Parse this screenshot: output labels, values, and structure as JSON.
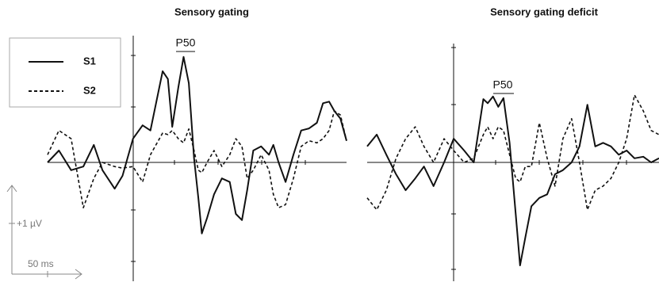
{
  "chart_data": [
    {
      "type": "line",
      "title": "Sensory gating",
      "annotations": [
        "P50"
      ],
      "x": [
        -98,
        -85,
        -71,
        -57,
        -45,
        -35,
        -21,
        -12,
        0,
        11,
        20,
        34,
        40,
        45,
        52,
        58,
        64,
        70,
        75,
        79,
        85,
        93,
        102,
        111,
        118,
        125,
        131,
        138,
        147,
        156,
        161,
        167,
        175,
        184,
        193,
        202,
        211,
        218,
        225,
        231,
        238,
        245
      ],
      "xlim": [
        -98,
        245
      ],
      "ylim": [
        -2.4,
        2.4
      ],
      "series": [
        {
          "name": "S1",
          "color": "#111111",
          "linestyle": "solid",
          "values": [
            0,
            0.23,
            -0.15,
            -0.08,
            0.34,
            -0.15,
            -0.51,
            -0.26,
            0.46,
            0.72,
            0.62,
            1.77,
            1.62,
            0.69,
            1.46,
            2.05,
            1.54,
            0.08,
            -0.69,
            -1.38,
            -1.08,
            -0.62,
            -0.31,
            -0.38,
            -1.0,
            -1.12,
            -0.54,
            0.23,
            0.31,
            0.15,
            0.34,
            0,
            -0.38,
            0.15,
            0.62,
            0.66,
            0.77,
            1.15,
            1.18,
            1.0,
            0.85,
            0.42
          ]
        },
        {
          "name": "S2",
          "color": "#111111",
          "linestyle": "dashed",
          "values": [
            0.15,
            0.62,
            0.46,
            -0.88,
            -0.31,
            0,
            -0.08,
            -0.11,
            -0.08,
            -0.38,
            0.15,
            0.57,
            0.54,
            0.62,
            0.46,
            0.38,
            0.65,
            0.23,
            -0.15,
            -0.2,
            0,
            0.23,
            -0.08,
            0.15,
            0.46,
            0.31,
            -0.31,
            -0.15,
            0.15,
            -0.15,
            -0.62,
            -0.88,
            -0.82,
            -0.31,
            0.31,
            0.42,
            0.38,
            0.46,
            0.62,
            1.0,
            0.92,
            0.42
          ]
        }
      ]
    },
    {
      "type": "line",
      "title": "Sensory gating deficit",
      "annotations": [
        "P50"
      ],
      "x": [
        -99,
        -88,
        -77,
        -66,
        -55,
        -44,
        -34,
        -23,
        -11,
        0,
        12,
        23,
        34,
        39,
        45,
        51,
        57,
        64,
        71,
        76,
        82,
        89,
        98,
        107,
        116,
        125,
        135,
        144,
        153,
        162,
        171,
        180,
        189,
        198,
        207,
        217,
        226,
        235
      ],
      "xlim": [
        -99,
        235
      ],
      "ylim": [
        -2.4,
        2.4
      ],
      "series": [
        {
          "color": "#111111",
          "linestyle": "solid",
          "values": [
            0.31,
            0.54,
            0.15,
            -0.23,
            -0.54,
            -0.31,
            -0.08,
            -0.46,
            0,
            0.46,
            0.23,
            0,
            1.23,
            1.15,
            1.28,
            1.08,
            1.25,
            0.38,
            -1.0,
            -2.0,
            -1.46,
            -0.85,
            -0.69,
            -0.62,
            -0.23,
            -0.15,
            0,
            0.31,
            1.12,
            0.31,
            0.38,
            0.31,
            0.15,
            0.23,
            0.08,
            0.11,
            0,
            0.08
          ]
        },
        {
          "color": "#111111",
          "linestyle": "dashed",
          "values": [
            -0.69,
            -0.92,
            -0.54,
            0.08,
            0.46,
            0.69,
            0.31,
            0,
            0.46,
            0.23,
            0,
            0.08,
            0.54,
            0.69,
            0.46,
            0.69,
            0.62,
            0.15,
            -0.31,
            -0.38,
            -0.08,
            -0.08,
            0.77,
            0.08,
            -0.46,
            0.46,
            0.85,
            0,
            -0.92,
            -0.54,
            -0.46,
            -0.31,
            0,
            0.46,
            1.31,
            1.0,
            0.62,
            0.54
          ]
        }
      ]
    }
  ],
  "scale_bar": {
    "y_label": "+1 µV",
    "x_label": "50 ms"
  }
}
